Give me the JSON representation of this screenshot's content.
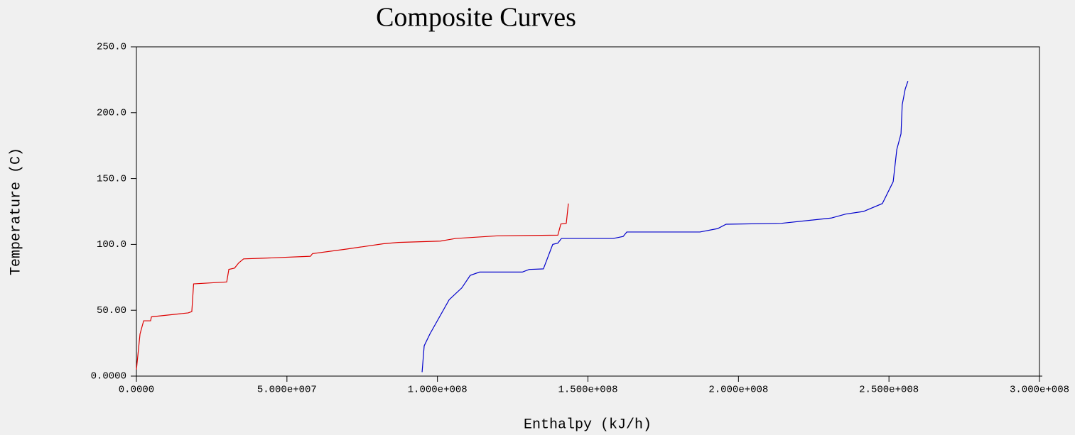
{
  "chart_data": {
    "type": "line",
    "title": "Composite Curves",
    "x_label": "Enthalpy (kJ/h)",
    "y_label": "Temperature (C)",
    "xlim": [
      0,
      300000000
    ],
    "ylim": [
      0,
      250
    ],
    "xticks": [
      {
        "value": 0,
        "label": "0.0000"
      },
      {
        "value": 50000000,
        "label": "5.000e+007"
      },
      {
        "value": 100000000,
        "label": "1.000e+008"
      },
      {
        "value": 150000000,
        "label": "1.500e+008"
      },
      {
        "value": 200000000,
        "label": "2.000e+008"
      },
      {
        "value": 250000000,
        "label": "2.500e+008"
      },
      {
        "value": 300000000,
        "label": "3.000e+008"
      }
    ],
    "yticks": [
      {
        "value": 0,
        "label": "0.0000"
      },
      {
        "value": 50,
        "label": "50.00"
      },
      {
        "value": 100,
        "label": "100.0"
      },
      {
        "value": 150,
        "label": "150.0"
      },
      {
        "value": 200,
        "label": "200.0"
      },
      {
        "value": 250,
        "label": "250.0"
      }
    ],
    "series": [
      {
        "color": "#dd0000",
        "x": [
          0,
          1200000,
          2400000,
          4700000,
          5000000,
          9000000,
          17200000,
          18400000,
          19000000,
          30000000,
          30700000,
          32600000,
          34000000,
          35600000,
          42000000,
          57800000,
          58500000,
          70000000,
          82000000,
          87000000,
          101000000,
          106000000,
          120000000,
          140000000,
          141000000,
          142800000,
          143500000
        ],
        "values": [
          5,
          32,
          42,
          42,
          45,
          46,
          48,
          49,
          70,
          71.5,
          81,
          82,
          86,
          89,
          89.5,
          91,
          93,
          96.5,
          100.5,
          101.5,
          102.5,
          104.5,
          106.5,
          107,
          115.5,
          116,
          131
        ]
      },
      {
        "color": "#0000cc",
        "x": [
          94900000,
          95600000,
          97500000,
          103900000,
          108100000,
          110900000,
          114000000,
          128200000,
          130500000,
          135200000,
          138300000,
          140000000,
          141200000,
          158400000,
          161700000,
          162900000,
          187200000,
          193100000,
          195900000,
          214300000,
          230800000,
          235600000,
          241500000,
          247800000,
          251400000,
          252600000,
          254000000,
          254400000,
          255400000,
          256300000
        ],
        "values": [
          3,
          23,
          32,
          58,
          67,
          76.5,
          79,
          79,
          81,
          81.4,
          100,
          101,
          104.5,
          104.5,
          106,
          109.4,
          109.4,
          112,
          115.3,
          116,
          120,
          123,
          125,
          131,
          147.6,
          172,
          184,
          206,
          218,
          224
        ]
      }
    ]
  }
}
